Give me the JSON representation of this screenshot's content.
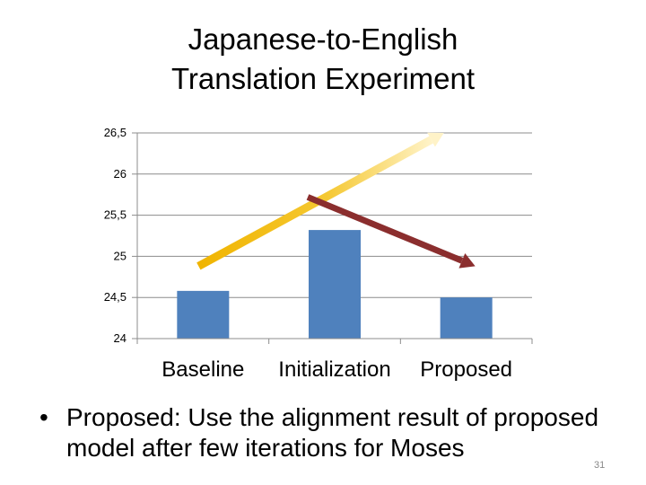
{
  "slide": {
    "title_line1": "Japanese-to-English",
    "title_line2": "Translation Experiment",
    "bullet_symbol": "•",
    "bullet_text": "Proposed: Use the alignment result of proposed model after few iterations for Moses",
    "page_number": "31"
  },
  "chart_data": {
    "type": "bar",
    "categories": [
      "Baseline",
      "Initialization",
      "Proposed"
    ],
    "values": [
      24.58,
      25.32,
      24.5
    ],
    "ylim": [
      24,
      26.5
    ],
    "yticks": [
      24,
      24.5,
      25,
      25.5,
      26,
      26.5
    ],
    "ytick_labels": [
      "24",
      "24,5",
      "25",
      "25,5",
      "26",
      "26,5"
    ],
    "grid": true,
    "bar_color": "#4f81bd",
    "annotations": [
      {
        "kind": "arrow",
        "from": {
          "category": "Baseline",
          "y": 24.88
        },
        "to": {
          "category": "Proposed",
          "y": 26.5
        },
        "color": "#f0b400"
      },
      {
        "kind": "arrow",
        "from": {
          "category": "Initialization",
          "y": 25.72
        },
        "to": {
          "category": "Proposed",
          "y": 24.88
        },
        "color": "#8b2e2e"
      }
    ]
  }
}
